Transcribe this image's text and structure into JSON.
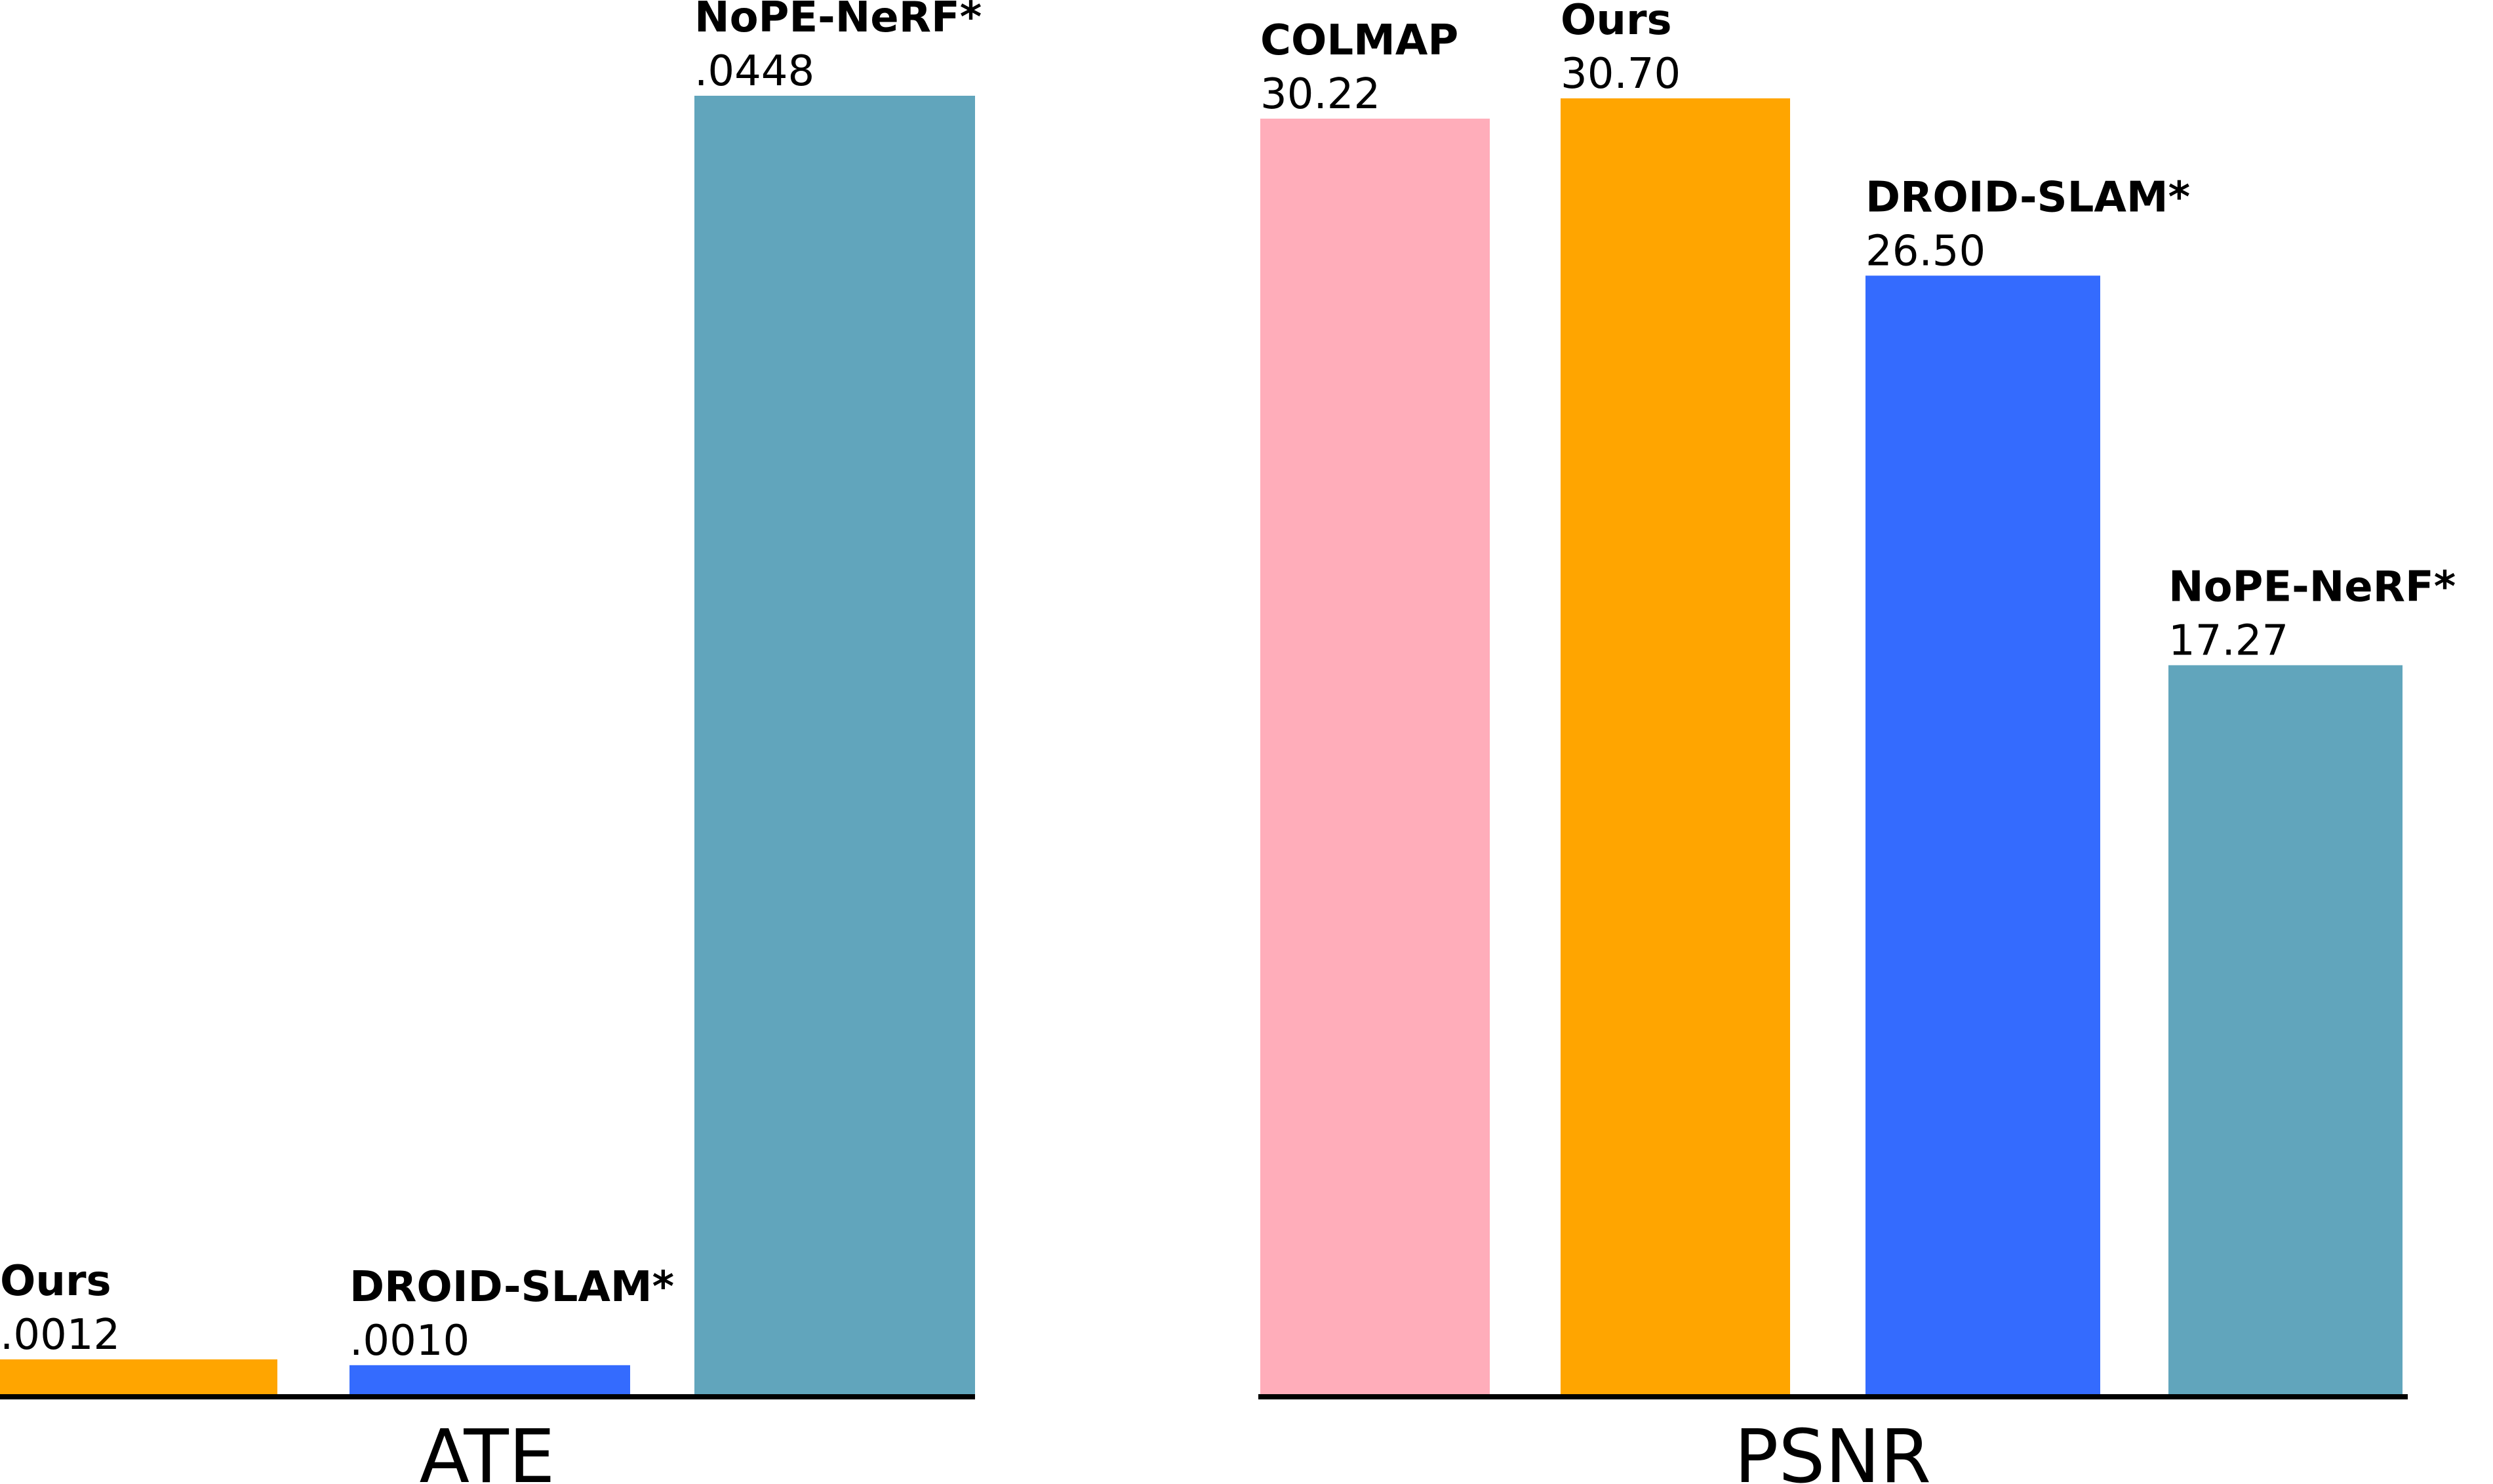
{
  "chart_data": [
    {
      "type": "bar",
      "xlabel": "ATE",
      "categories": [
        "Ours",
        "DROID-SLAM*",
        "NoPE-NeRF*"
      ],
      "values": [
        0.0012,
        0.001,
        0.0448
      ],
      "value_labels": [
        ".0012",
        ".0010",
        ".0448"
      ],
      "colors": [
        "#ffa500",
        "#346bfe",
        "#61a5bc"
      ],
      "ylim": [
        0,
        0.0448
      ],
      "grid": false
    },
    {
      "type": "bar",
      "xlabel": "PSNR",
      "categories": [
        "COLMAP",
        "Ours",
        "DROID-SLAM*",
        "NoPE-NeRF*"
      ],
      "values": [
        30.22,
        30.7,
        26.5,
        17.27
      ],
      "value_labels": [
        "30.22",
        "30.70",
        "26.50",
        "17.27"
      ],
      "colors": [
        "#ffadba",
        "#ffa500",
        "#346bfe",
        "#61a5bc"
      ],
      "ylim": [
        0,
        30.7
      ],
      "grid": false
    }
  ]
}
